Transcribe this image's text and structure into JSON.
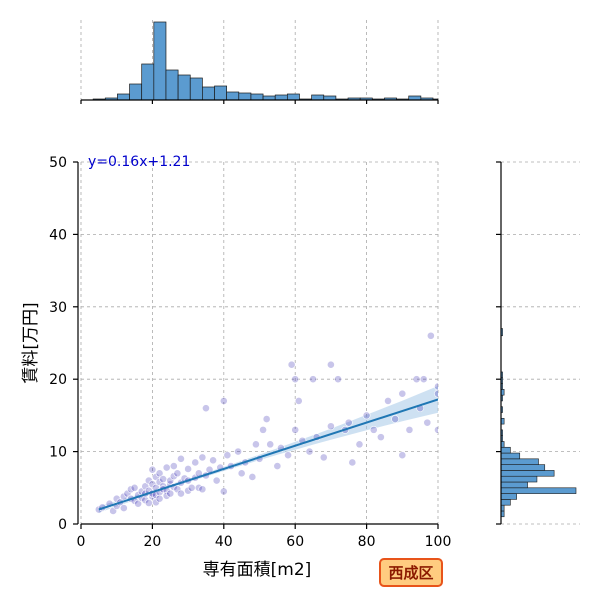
{
  "chart_data": {
    "type": "scatter",
    "xlabel": "専有面積[m2]",
    "ylabel": "賃料[万円]",
    "xlim": [
      0,
      100
    ],
    "ylim": [
      0,
      50
    ],
    "xticks": [
      0,
      20,
      40,
      60,
      80,
      100
    ],
    "yticks": [
      0,
      10,
      20,
      30,
      40,
      50
    ],
    "grid": true,
    "regression": {
      "label": "y=0.16x+1.21",
      "slope": 0.16,
      "intercept": 1.21,
      "x_range": [
        5,
        100
      ]
    },
    "badge": "西成区",
    "colors": {
      "points": "#3a2fb5",
      "regression": "#1f77b4",
      "band": "#a6c8e8",
      "hist": "#5b9bd0",
      "badge_bg": "#ffcc80",
      "badge_border": "#e8541a",
      "badge_text": "#8b1a00"
    },
    "points": [
      [
        5,
        2
      ],
      [
        6,
        2.3
      ],
      [
        8,
        2.8
      ],
      [
        9,
        1.8
      ],
      [
        10,
        3.5
      ],
      [
        10,
        2.5
      ],
      [
        11,
        3
      ],
      [
        12,
        3.8
      ],
      [
        12,
        2.2
      ],
      [
        13,
        4.2
      ],
      [
        14,
        3.5
      ],
      [
        14,
        4.8
      ],
      [
        15,
        3.2
      ],
      [
        15,
        5
      ],
      [
        16,
        2.8
      ],
      [
        16,
        4
      ],
      [
        17,
        4.5
      ],
      [
        17,
        3.6
      ],
      [
        18,
        5.2
      ],
      [
        18,
        3.3
      ],
      [
        18,
        4.2
      ],
      [
        19,
        6
      ],
      [
        19,
        2.9
      ],
      [
        19,
        4.6
      ],
      [
        20,
        3.8
      ],
      [
        20,
        5.5
      ],
      [
        20,
        7.5
      ],
      [
        20,
        4.2
      ],
      [
        21,
        4
      ],
      [
        21,
        6.5
      ],
      [
        21,
        5
      ],
      [
        21,
        3
      ],
      [
        22,
        5.8
      ],
      [
        22,
        4.4
      ],
      [
        22,
        7
      ],
      [
        22,
        3.5
      ],
      [
        23,
        5.2
      ],
      [
        23,
        6.2
      ],
      [
        23,
        4.8
      ],
      [
        24,
        4.6
      ],
      [
        24,
        7.8
      ],
      [
        24,
        3.9
      ],
      [
        25,
        5.5
      ],
      [
        25,
        6
      ],
      [
        25,
        4.2
      ],
      [
        26,
        8
      ],
      [
        26,
        5.1
      ],
      [
        26,
        6.6
      ],
      [
        27,
        4.8
      ],
      [
        27,
        7
      ],
      [
        28,
        5.7
      ],
      [
        28,
        9
      ],
      [
        28,
        4.2
      ],
      [
        29,
        6.3
      ],
      [
        30,
        6
      ],
      [
        30,
        7.6
      ],
      [
        30,
        4.6
      ],
      [
        31,
        5
      ],
      [
        32,
        8.5
      ],
      [
        32,
        6.4
      ],
      [
        33,
        7
      ],
      [
        33,
        5
      ],
      [
        34,
        4.8
      ],
      [
        34,
        9.2
      ],
      [
        35,
        6.7
      ],
      [
        35,
        16
      ],
      [
        36,
        7.5
      ],
      [
        37,
        8.8
      ],
      [
        38,
        6
      ],
      [
        39,
        7.8
      ],
      [
        40,
        17
      ],
      [
        40,
        4.5
      ],
      [
        41,
        9.5
      ],
      [
        42,
        8
      ],
      [
        44,
        10
      ],
      [
        45,
        7
      ],
      [
        46,
        8.5
      ],
      [
        48,
        6.5
      ],
      [
        49,
        11
      ],
      [
        50,
        9
      ],
      [
        51,
        13
      ],
      [
        52,
        14.5
      ],
      [
        53,
        11
      ],
      [
        55,
        8
      ],
      [
        56,
        10.5
      ],
      [
        58,
        9.5
      ],
      [
        59,
        22
      ],
      [
        60,
        20
      ],
      [
        60,
        13
      ],
      [
        61,
        17
      ],
      [
        62,
        11.5
      ],
      [
        64,
        10
      ],
      [
        65,
        20
      ],
      [
        66,
        12
      ],
      [
        68,
        9.2
      ],
      [
        70,
        13.5
      ],
      [
        70,
        22
      ],
      [
        72,
        20
      ],
      [
        74,
        13
      ],
      [
        75,
        14
      ],
      [
        76,
        8.5
      ],
      [
        78,
        11
      ],
      [
        80,
        15
      ],
      [
        82,
        13
      ],
      [
        84,
        12
      ],
      [
        86,
        17
      ],
      [
        88,
        14.5
      ],
      [
        90,
        9.5
      ],
      [
        90,
        18
      ],
      [
        92,
        13
      ],
      [
        94,
        20
      ],
      [
        95,
        16
      ],
      [
        96,
        20
      ],
      [
        97,
        14
      ],
      [
        98,
        26
      ],
      [
        100,
        19
      ],
      [
        100,
        13
      ],
      [
        100,
        18
      ]
    ],
    "top_hist": {
      "bin_edges": [
        0,
        3.4,
        6.8,
        10.2,
        13.6,
        17,
        20.4,
        23.8,
        27.2,
        30.6,
        34,
        37.4,
        40.8,
        44.2,
        47.6,
        51,
        54.4,
        57.8,
        61.2,
        64.6,
        68,
        71.4,
        74.8,
        78.2,
        81.6,
        85,
        88.4,
        91.8,
        95.2,
        98.6,
        100
      ],
      "values": [
        0,
        1,
        2,
        6,
        16,
        36,
        78,
        30,
        25,
        22,
        13,
        14,
        8,
        7,
        6,
        4,
        5,
        6,
        1,
        5,
        4,
        1,
        2,
        2,
        1,
        2,
        1,
        4,
        2,
        1
      ]
    },
    "right_hist": {
      "bin_edges": [
        1,
        1.8,
        2.6,
        3.4,
        4.2,
        5,
        5.8,
        6.6,
        7.4,
        8.2,
        9,
        9.8,
        10.6,
        11.4,
        12.2,
        13,
        13.8,
        14.6,
        15.4,
        16.2,
        17,
        17.8,
        18.6,
        19.4,
        20.2,
        21,
        22,
        26,
        27
      ],
      "values": [
        2,
        2,
        6,
        10,
        48,
        17,
        23,
        34,
        28,
        24,
        12,
        6,
        2,
        1,
        1,
        0,
        2,
        0,
        1,
        0,
        1,
        2,
        1,
        1,
        1,
        0,
        0,
        1
      ]
    }
  }
}
